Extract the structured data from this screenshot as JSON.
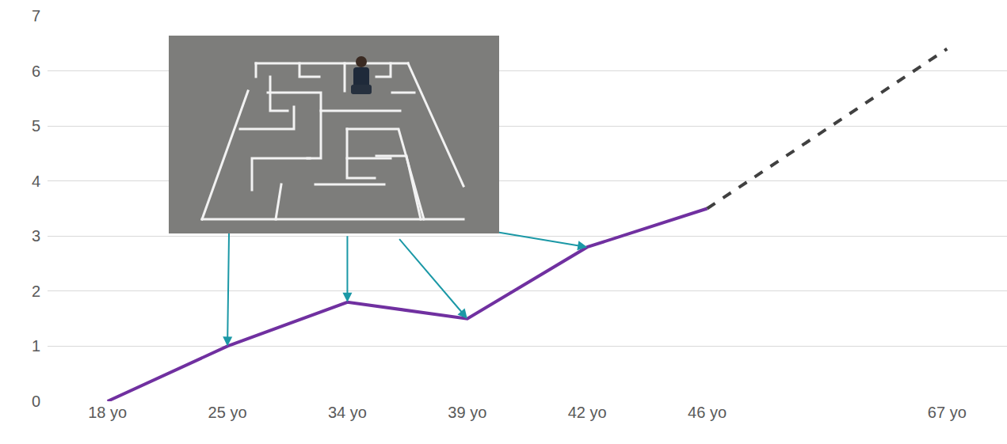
{
  "chart_data": {
    "type": "line",
    "categories": [
      "18 yo",
      "25 yo",
      "34 yo",
      "39 yo",
      "42 yo",
      "46 yo",
      null,
      "67 yo"
    ],
    "series": [
      {
        "color": "#7030a0",
        "line_style": "solid",
        "values": [
          0,
          1,
          1.8,
          1.5,
          2.8,
          3.5,
          null,
          null
        ]
      },
      {
        "color": "#404040",
        "line_style": "dash",
        "values": [
          null,
          null,
          null,
          null,
          null,
          3.5,
          null,
          6.4
        ]
      }
    ],
    "ylim": [
      0,
      7
    ],
    "yticks": [
      0,
      1,
      2,
      3,
      4,
      5,
      6,
      7
    ],
    "grid": true
  }
}
